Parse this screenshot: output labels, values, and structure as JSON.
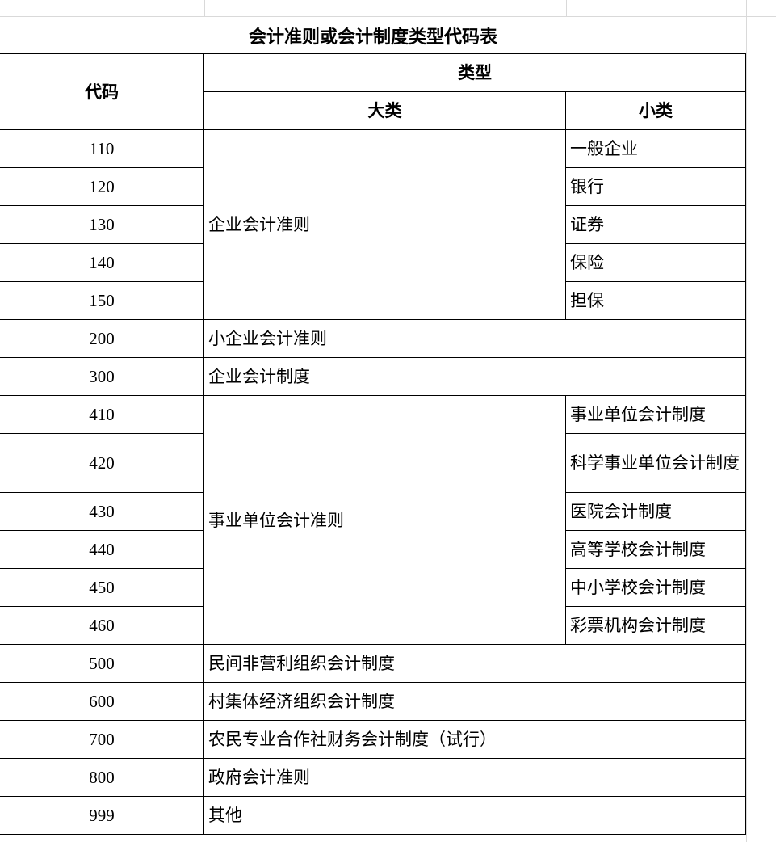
{
  "title": "会计准则或会计制度类型代码表",
  "headers": {
    "code": "代码",
    "type": "类型",
    "major": "大类",
    "minor": "小类"
  },
  "groups": [
    {
      "major": "企业会计准则",
      "rows": [
        {
          "code": "110",
          "minor": "一般企业"
        },
        {
          "code": "120",
          "minor": "银行"
        },
        {
          "code": "130",
          "minor": "证券"
        },
        {
          "code": "140",
          "minor": "保险"
        },
        {
          "code": "150",
          "minor": "担保"
        }
      ]
    },
    {
      "major": "小企业会计准则",
      "rows": [
        {
          "code": "200"
        }
      ]
    },
    {
      "major": "企业会计制度",
      "rows": [
        {
          "code": "300"
        }
      ]
    },
    {
      "major": "事业单位会计准则",
      "rows": [
        {
          "code": "410",
          "minor": "事业单位会计制度"
        },
        {
          "code": "420",
          "minor": "科学事业单位会计制度"
        },
        {
          "code": "430",
          "minor": "医院会计制度"
        },
        {
          "code": "440",
          "minor": "高等学校会计制度"
        },
        {
          "code": "450",
          "minor": "中小学校会计制度"
        },
        {
          "code": "460",
          "minor": "彩票机构会计制度"
        }
      ]
    },
    {
      "major": "民间非营利组织会计制度",
      "rows": [
        {
          "code": "500"
        }
      ]
    },
    {
      "major": "村集体经济组织会计制度",
      "rows": [
        {
          "code": "600"
        }
      ]
    },
    {
      "major": "农民专业合作社财务会计制度（试行）",
      "rows": [
        {
          "code": "700"
        }
      ]
    },
    {
      "major": "政府会计准则",
      "rows": [
        {
          "code": "800"
        }
      ]
    },
    {
      "major": "其他",
      "rows": [
        {
          "code": "999"
        }
      ]
    }
  ]
}
